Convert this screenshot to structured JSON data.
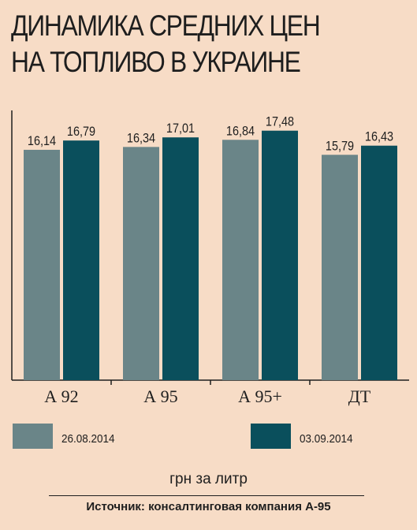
{
  "title_lines": [
    "ДИНАМИКА СРЕДНИХ ЦЕН",
    "НА ТОПЛИВО В УКРАИНЕ"
  ],
  "unit": "грн за литр",
  "source": "Источник: консалтинговая компания А-95",
  "colors": {
    "background": "#f7dcc6",
    "series1": "#6a8588",
    "series2": "#0a4f5c",
    "axis": "#1e1e1e"
  },
  "chart_data": {
    "type": "bar",
    "title": "ДИНАМИКА СРЕДНИХ ЦЕН НА ТОПЛИВО В УКРАИНЕ",
    "xlabel": "",
    "ylabel": "грн за литр",
    "categories": [
      "А 92",
      "А 95",
      "А 95+",
      "ДТ"
    ],
    "series": [
      {
        "name": "26.08.2014",
        "values": [
          16.14,
          16.34,
          16.84,
          15.79
        ],
        "labels": [
          "16,14",
          "16,34",
          "16,84",
          "15,79"
        ],
        "color": "#6a8588"
      },
      {
        "name": "03.09.2014",
        "values": [
          16.79,
          17.01,
          17.48,
          16.43
        ],
        "labels": [
          "16,79",
          "17,01",
          "17,48",
          "16,43"
        ],
        "color": "#0a4f5c"
      }
    ],
    "ylim": [
      0,
      18.9
    ],
    "grid": false,
    "legend": "bottom"
  }
}
